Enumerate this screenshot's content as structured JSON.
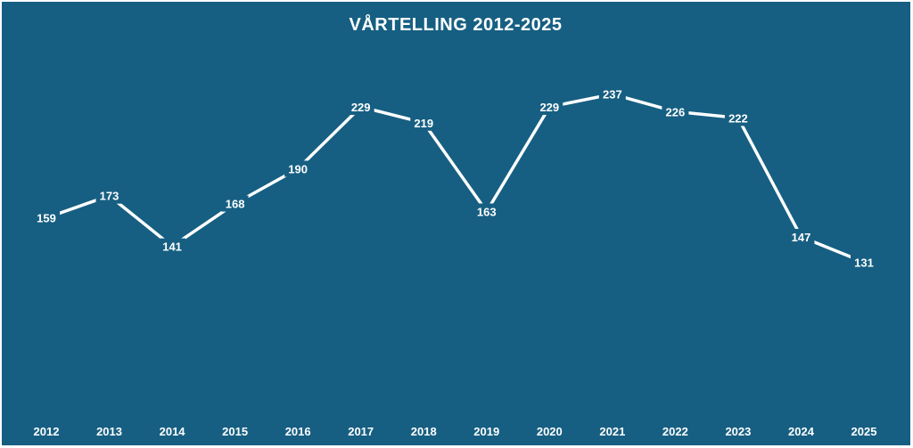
{
  "chart_data": {
    "type": "line",
    "title": "VÅRTELLING 2012-2025",
    "xlabel": "",
    "ylabel": "",
    "categories": [
      "2012",
      "2013",
      "2014",
      "2015",
      "2016",
      "2017",
      "2018",
      "2019",
      "2020",
      "2021",
      "2022",
      "2023",
      "2024",
      "2025"
    ],
    "values": [
      159,
      173,
      141,
      168,
      190,
      229,
      219,
      163,
      229,
      237,
      226,
      222,
      147,
      131
    ],
    "grid": false,
    "legend": "none",
    "colors": {
      "background": "#165f82",
      "line": "#ffffff",
      "text": "#ffffff",
      "drop_line": "#ffffff"
    }
  }
}
